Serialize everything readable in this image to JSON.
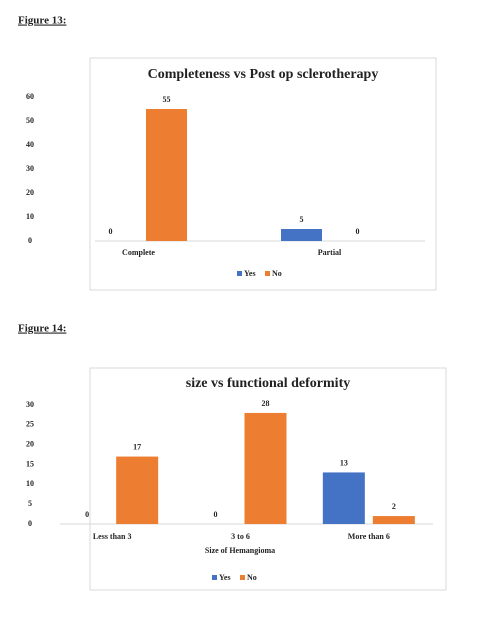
{
  "captions": [
    "Figure 13:",
    "Figure 14:"
  ],
  "chart_data": [
    {
      "type": "bar",
      "title": "Completeness vs Post op sclerotherapy",
      "categories": [
        "Complete",
        "Partial"
      ],
      "series": [
        {
          "name": "Yes",
          "color": "#4472c4",
          "values": [
            0,
            5
          ]
        },
        {
          "name": "No",
          "color": "#ed7d31",
          "values": [
            55,
            0
          ]
        }
      ],
      "ylim": [
        0,
        60
      ],
      "yticks": [
        0,
        10,
        20,
        30,
        40,
        50,
        60
      ],
      "legend": "bottom"
    },
    {
      "type": "bar",
      "title": "size vs functional deformity",
      "xlabel": "Size of Hemangioma",
      "categories": [
        "Less than 3",
        "3 to 6",
        "More than 6"
      ],
      "series": [
        {
          "name": "Yes",
          "color": "#4472c4",
          "values": [
            0,
            0,
            13
          ]
        },
        {
          "name": "No",
          "color": "#ed7d31",
          "values": [
            17,
            28,
            2
          ]
        }
      ],
      "ylim": [
        0,
        30
      ],
      "yticks": [
        0,
        5,
        10,
        15,
        20,
        25,
        30
      ],
      "legend": "bottom"
    }
  ]
}
